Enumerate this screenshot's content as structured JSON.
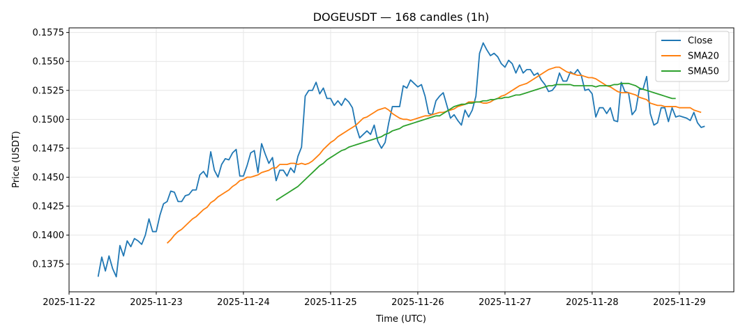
{
  "chart_data": {
    "type": "line",
    "title": "DOGEUSDT — 168 candles (1h)",
    "xlabel": "Time (UTC)",
    "ylabel": "Price (USDT)",
    "ylim": [
      0.1351,
      0.1579
    ],
    "xlim": [
      "2025-11-22 00:00",
      "2025-11-29 15:00"
    ],
    "yticks": [
      "0.1375",
      "0.1400",
      "0.1425",
      "0.1450",
      "0.1475",
      "0.1500",
      "0.1525",
      "0.1550",
      "0.1575"
    ],
    "xticks": [
      "2025-11-22",
      "2025-11-23",
      "2025-11-24",
      "2025-11-25",
      "2025-11-26",
      "2025-11-27",
      "2025-11-28",
      "2025-11-29"
    ],
    "grid": true,
    "legend_position": "top-right",
    "x_start": "2025-11-22 08:00",
    "x_step_hours": 1,
    "series": [
      {
        "name": "Close",
        "color": "#1f77b4",
        "start_index": 0,
        "values": [
          0.1364,
          0.1381,
          0.1369,
          0.1382,
          0.1371,
          0.1364,
          0.1391,
          0.1382,
          0.1395,
          0.139,
          0.1397,
          0.1395,
          0.1392,
          0.14,
          0.1414,
          0.1403,
          0.1403,
          0.1417,
          0.1427,
          0.1429,
          0.1438,
          0.1437,
          0.1429,
          0.1429,
          0.1434,
          0.1435,
          0.1439,
          0.1439,
          0.1452,
          0.1455,
          0.145,
          0.1472,
          0.1456,
          0.145,
          0.1461,
          0.1466,
          0.1465,
          0.1471,
          0.1474,
          0.1451,
          0.1451,
          0.146,
          0.1471,
          0.1473,
          0.1454,
          0.1479,
          0.147,
          0.1462,
          0.1467,
          0.1447,
          0.1456,
          0.1456,
          0.1451,
          0.1458,
          0.1454,
          0.1468,
          0.1476,
          0.152,
          0.1525,
          0.1525,
          0.1532,
          0.1522,
          0.1527,
          0.1518,
          0.1518,
          0.1512,
          0.1516,
          0.1512,
          0.1518,
          0.1515,
          0.151,
          0.1494,
          0.1484,
          0.1487,
          0.149,
          0.1487,
          0.1495,
          0.1481,
          0.1475,
          0.148,
          0.1497,
          0.1511,
          0.1511,
          0.1511,
          0.1529,
          0.1527,
          0.1534,
          0.1531,
          0.1528,
          0.153,
          0.152,
          0.1505,
          0.1504,
          0.1516,
          0.152,
          0.1523,
          0.1512,
          0.1501,
          0.1504,
          0.1499,
          0.1495,
          0.1508,
          0.1502,
          0.1508,
          0.152,
          0.1557,
          0.1566,
          0.156,
          0.1555,
          0.1557,
          0.1554,
          0.1548,
          0.1545,
          0.1551,
          0.1548,
          0.154,
          0.1547,
          0.154,
          0.1543,
          0.1543,
          0.1538,
          0.154,
          0.1534,
          0.153,
          0.1524,
          0.1525,
          0.1529,
          0.154,
          0.1533,
          0.1533,
          0.1541,
          0.1539,
          0.1543,
          0.1538,
          0.1525,
          0.1526,
          0.1522,
          0.1502,
          0.151,
          0.151,
          0.1505,
          0.151,
          0.1499,
          0.1498,
          0.1532,
          0.1524,
          0.1523,
          0.1504,
          0.1508,
          0.1526,
          0.1526,
          0.1537,
          0.1505,
          0.1495,
          0.1497,
          0.151,
          0.151,
          0.1498,
          0.151,
          0.1502,
          0.1503,
          0.1502,
          0.1501,
          0.1499,
          0.1506,
          0.1497,
          0.1493,
          0.1494
        ]
      },
      {
        "name": "SMA20",
        "color": "#ff7f0e",
        "start_index": 19,
        "values": [
          0.1393,
          0.1396,
          0.14,
          0.1403,
          0.1405,
          0.1408,
          0.1411,
          0.1414,
          0.1416,
          0.1419,
          0.1422,
          0.1424,
          0.1428,
          0.143,
          0.1433,
          0.1435,
          0.1437,
          0.1439,
          0.1442,
          0.1444,
          0.1447,
          0.1448,
          0.145,
          0.145,
          0.1451,
          0.1452,
          0.1454,
          0.1455,
          0.1456,
          0.1458,
          0.1458,
          0.1461,
          0.1461,
          0.1461,
          0.1462,
          0.1462,
          0.1461,
          0.1462,
          0.1461,
          0.1462,
          0.1464,
          0.1467,
          0.147,
          0.1474,
          0.1477,
          0.148,
          0.1482,
          0.1485,
          0.1487,
          0.1489,
          0.1491,
          0.1493,
          0.1495,
          0.1498,
          0.1501,
          0.1502,
          0.1504,
          0.1506,
          0.1508,
          0.1509,
          0.151,
          0.1508,
          0.1505,
          0.1503,
          0.1501,
          0.15,
          0.15,
          0.1499,
          0.15,
          0.1501,
          0.1502,
          0.1503,
          0.1503,
          0.1504,
          0.1505,
          0.1506,
          0.1506,
          0.1507,
          0.1508,
          0.1509,
          0.1511,
          0.1512,
          0.1513,
          0.1515,
          0.1515,
          0.1515,
          0.1515,
          0.1514,
          0.1514,
          0.1515,
          0.1517,
          0.1518,
          0.152,
          0.1521,
          0.1523,
          0.1525,
          0.1527,
          0.1529,
          0.153,
          0.1531,
          0.1533,
          0.1535,
          0.1537,
          0.1539,
          0.1541,
          0.1543,
          0.1544,
          0.1545,
          0.1545,
          0.1543,
          0.1541,
          0.154,
          0.1539,
          0.1538,
          0.1538,
          0.1537,
          0.1536,
          0.1536,
          0.1535,
          0.1533,
          0.1531,
          0.1529,
          0.1528,
          0.1526,
          0.1524,
          0.1523,
          0.1523,
          0.1523,
          0.1522,
          0.1521,
          0.1519,
          0.1518,
          0.1517,
          0.1514,
          0.1513,
          0.1512,
          0.1512,
          0.1511,
          0.1511,
          0.1511,
          0.1511,
          0.151,
          0.151,
          0.151,
          0.151,
          0.1508,
          0.1507,
          0.1506
        ]
      },
      {
        "name": "SMA50",
        "color": "#2ca02c",
        "start_index": 49,
        "values": [
          0.143,
          0.1432,
          0.1434,
          0.1436,
          0.1438,
          0.144,
          0.1442,
          0.1445,
          0.1448,
          0.1451,
          0.1454,
          0.1457,
          0.146,
          0.1462,
          0.1465,
          0.1467,
          0.1469,
          0.1471,
          0.1473,
          0.1474,
          0.1476,
          0.1477,
          0.1478,
          0.1479,
          0.148,
          0.1481,
          0.1482,
          0.1483,
          0.1484,
          0.1485,
          0.1487,
          0.1488,
          0.149,
          0.1491,
          0.1492,
          0.1494,
          0.1495,
          0.1496,
          0.1497,
          0.1498,
          0.1499,
          0.15,
          0.1501,
          0.1502,
          0.1503,
          0.1503,
          0.1505,
          0.1507,
          0.1509,
          0.1511,
          0.1512,
          0.1513,
          0.1513,
          0.1514,
          0.1514,
          0.1515,
          0.1515,
          0.1516,
          0.1516,
          0.1517,
          0.1517,
          0.1518,
          0.1518,
          0.1519,
          0.1519,
          0.152,
          0.1521,
          0.1521,
          0.1522,
          0.1523,
          0.1524,
          0.1525,
          0.1526,
          0.1527,
          0.1528,
          0.1529,
          0.1529,
          0.153,
          0.153,
          0.153,
          0.153,
          0.153,
          0.1529,
          0.1529,
          0.1529,
          0.1529,
          0.1529,
          0.1529,
          0.1528,
          0.1529,
          0.1529,
          0.1529,
          0.1529,
          0.153,
          0.153,
          0.1531,
          0.1531,
          0.1531,
          0.153,
          0.1529,
          0.1527,
          0.1526,
          0.1525,
          0.1524,
          0.1523,
          0.1522,
          0.1521,
          0.152,
          0.1519,
          0.1518,
          0.1518
        ]
      }
    ]
  }
}
